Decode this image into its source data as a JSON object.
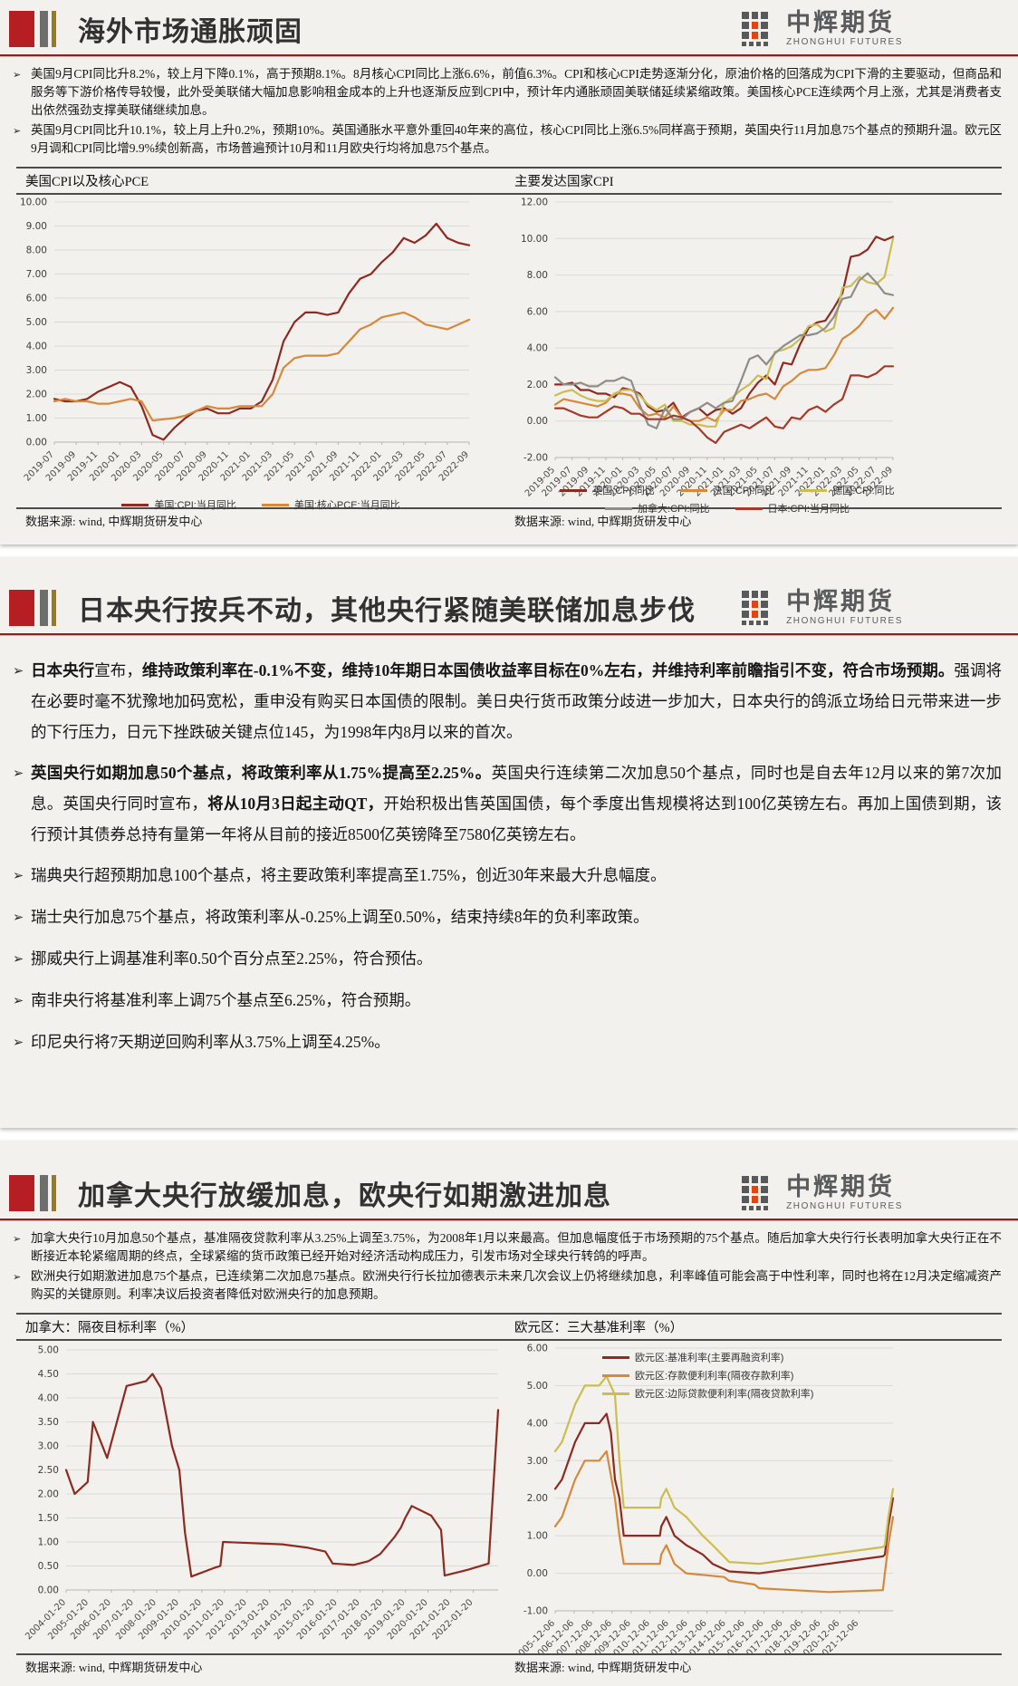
{
  "logo": {
    "cn": "中辉期货",
    "en": "ZHONGHUI FUTURES"
  },
  "bullet_glyph": "➢",
  "colors": {
    "accent_red": "#b51f24",
    "rule_red": "#8f2020",
    "header_gray": "#6e6e6e",
    "header_gold": "#9a7a1e",
    "card_bg": "#f2f1ee",
    "maroon": "#8e2a21",
    "orange": "#d6893a",
    "olive": "#cbbd52",
    "gray_line": "#8e8d88",
    "japan_red": "#a43a2a",
    "logo_gray": "#5a5b5d",
    "logo_red": "#e8430f"
  },
  "sections": [
    {
      "title": "海外市场通胀顽固",
      "bullets": [
        [
          {
            "t": "美国9月CPI同比升8.2%，较上月下降0.1%，高于预期8.1%。8月核心CPI同比上涨6.6%，前值6.3%。CPI和核心CPI走势逐渐分化，原油价格的回落成为CPI下滑的主要驱动，但商品和服务等下游价格传导较慢，此外受美联储大幅加息影响租金成本的上升也逐渐反应到CPI中，预计年内通胀顽固美联储延续紧缩政策。美国核心PCE连续两个月上涨，尤其是消费者支出依然强劲支撑美联储继续加息。",
            "b": false
          }
        ],
        [
          {
            "t": "英国9月CPI同比升10.1%，较上月上升0.2%，预期10%。英国通胀水平意外重回40年来的高位，核心CPI同比上涨6.5%同样高于预期，英国央行11月加息75个基点的预期升温。欧元区9月调和CPI同比增9.9%续创新高，市场普遍预计10月和11月欧央行均将加息75个基点。",
            "b": false
          }
        ]
      ],
      "chart_titles": [
        "美国CPI以及核心PCE",
        "主要发达国家CPI"
      ],
      "sources": [
        "数据来源: wind, 中辉期货研发中心",
        "数据来源: wind, 中辉期货研发中心"
      ]
    },
    {
      "title": "日本央行按兵不动，其他央行紧随美联储加息步伐",
      "bullets": [
        [
          {
            "t": "日本央行",
            "b": true
          },
          {
            "t": "宣布，",
            "b": false
          },
          {
            "t": "维持政策利率在-0.1%不变，维持10年期日本国债收益率目标在0%左右，并维持利率前瞻指引不变，符合市场预期。",
            "b": true
          },
          {
            "t": "强调将在必要时毫不犹豫地加码宽松，重申没有购买日本国债的限制。美日央行货币政策分歧进一步加大，日本央行的鸽派立场给日元带来进一步的下行压力，日元下挫跌破关键点位145，为1998年内8月以来的首次。",
            "b": false
          }
        ],
        [
          {
            "t": "英国央行如期加息50个基点，将政策利率从1.75%提高至2.25%。",
            "b": true
          },
          {
            "t": "英国央行连续第二次加息50个基点，同时也是自去年12月以来的第7次加息。英国央行同时宣布，",
            "b": false
          },
          {
            "t": "将从10月3日起主动QT，",
            "b": true
          },
          {
            "t": "开始积极出售英国国债，每个季度出售规模将达到100亿英镑左右。再加上国债到期，该行预计其债券总持有量第一年将从目前的接近8500亿英镑降至7580亿英镑左右。",
            "b": false
          }
        ],
        [
          {
            "t": "瑞典央行超预期加息100个基点，将主要政策利率提高至1.75%，创近30年来最大升息幅度。",
            "b": false
          }
        ],
        [
          {
            "t": "瑞士央行加息75个基点，将政策利率从-0.25%上调至0.50%，结束持续8年的负利率政策。",
            "b": false
          }
        ],
        [
          {
            "t": "挪威央行上调基准利率0.50个百分点至2.25%，符合预估。",
            "b": false
          }
        ],
        [
          {
            "t": "南非央行将基准利率上调75个基点至6.25%，符合预期。",
            "b": false
          }
        ],
        [
          {
            "t": "印尼央行将7天期逆回购利率从3.75%上调至4.25%。",
            "b": false
          }
        ]
      ]
    },
    {
      "title": "加拿大央行放缓加息，欧央行如期激进加息",
      "bullets": [
        [
          {
            "t": "加拿大央行10月加息50个基点，基准隔夜贷款利率从3.25%上调至3.75%，为2008年1月以来最高。但加息幅度低于市场预期的75个基点。随后加拿大央行行长表明加拿大央行正在不断接近本轮紧缩周期的终点，全球紧缩的货币政策已经开始对经济活动构成压力，引发市场对全球央行转鸽的呼声。",
            "b": false
          }
        ],
        [
          {
            "t": "欧洲央行如期激进加息75个基点，已连续第二次加息75基点。欧洲央行行长拉加德表示未来几次会议上仍将继续加息，利率峰值可能会高于中性利率，同时也将在12月决定缩减资产购买的关键原则。利率决议后投资者降低对欧洲央行的加息预期。",
            "b": false
          }
        ]
      ],
      "chart_titles": [
        "加拿大：隔夜目标利率（%）",
        "欧元区：三大基准利率（%）"
      ],
      "sources": [
        "数据来源: wind, 中辉期货研发中心",
        "数据来源: wind, 中辉期货研发中心"
      ]
    }
  ],
  "chart_data": [
    {
      "type": "line",
      "title": "美国CPI以及核心PCE",
      "ylim": [
        0,
        10
      ],
      "ytick": 1,
      "label_extend": 0,
      "grid": true,
      "legend_position": "below",
      "x_labels": [
        "2019-07",
        "2019-09",
        "2019-11",
        "2020-01",
        "2020-03",
        "2020-05",
        "2020-07",
        "2020-09",
        "2020-11",
        "2021-01",
        "2021-03",
        "2021-05",
        "2021-07",
        "2021-09",
        "2021-11",
        "2022-01",
        "2022-03",
        "2022-05",
        "2022-07",
        "2022-09"
      ],
      "legend_rows": [
        [
          0,
          1
        ]
      ],
      "series": [
        {
          "name": "美国:CPI:当月同比",
          "color": "#8e2a21",
          "y": [
            1.8,
            1.7,
            1.7,
            1.8,
            2.1,
            2.3,
            2.5,
            2.3,
            1.5,
            0.3,
            0.1,
            0.6,
            1.0,
            1.3,
            1.4,
            1.2,
            1.2,
            1.4,
            1.4,
            1.7,
            2.6,
            4.2,
            5.0,
            5.4,
            5.4,
            5.3,
            5.4,
            6.2,
            6.8,
            7.0,
            7.5,
            7.9,
            8.5,
            8.3,
            8.6,
            9.1,
            8.5,
            8.3,
            8.2
          ]
        },
        {
          "name": "美国:核心PCE:当月同比",
          "color": "#d6893a",
          "y": [
            1.7,
            1.8,
            1.7,
            1.7,
            1.6,
            1.6,
            1.7,
            1.8,
            1.7,
            0.9,
            0.95,
            1.0,
            1.1,
            1.3,
            1.5,
            1.4,
            1.4,
            1.5,
            1.5,
            1.5,
            2.0,
            3.1,
            3.5,
            3.6,
            3.6,
            3.6,
            3.7,
            4.2,
            4.7,
            4.9,
            5.2,
            5.3,
            5.4,
            5.2,
            4.9,
            4.8,
            4.7,
            4.9,
            5.1
          ]
        }
      ]
    },
    {
      "type": "line",
      "title": "主要发达国家CPI",
      "ylim": [
        -2,
        12
      ],
      "ytick": 2,
      "label_extend": 0,
      "grid": true,
      "legend_position": "below",
      "x_labels": [
        "2019-05",
        "2019-07",
        "2019-09",
        "2019-11",
        "2020-01",
        "2020-03",
        "2020-05",
        "2020-07",
        "2020-09",
        "2020-11",
        "2021-01",
        "2021-03",
        "2021-05",
        "2021-07",
        "2021-09",
        "2021-11",
        "2022-01",
        "2022-03",
        "2022-05",
        "2022-07",
        "2022-09"
      ],
      "legend_rows": [
        [
          0,
          1,
          2
        ],
        [
          3,
          4
        ]
      ],
      "series": [
        {
          "name": "英国:CPI:同比",
          "color": "#8e2a21",
          "y": [
            2.0,
            2.0,
            2.1,
            1.7,
            1.7,
            1.5,
            1.5,
            1.3,
            1.8,
            1.7,
            1.5,
            0.8,
            0.5,
            0.6,
            1.0,
            0.2,
            0.5,
            0.7,
            0.3,
            0.6,
            0.7,
            0.4,
            0.7,
            1.5,
            2.1,
            2.5,
            2.0,
            3.2,
            3.1,
            4.2,
            5.1,
            5.4,
            5.5,
            6.2,
            7.0,
            9.0,
            9.1,
            9.4,
            10.1,
            9.9,
            10.1
          ]
        },
        {
          "name": "法国:CPI:同比",
          "color": "#d6893a",
          "y": [
            0.9,
            1.2,
            1.1,
            1.0,
            0.9,
            0.8,
            1.0,
            1.5,
            1.5,
            1.4,
            0.7,
            0.3,
            0.4,
            0.2,
            0.8,
            0.2,
            0.0,
            0.0,
            0.2,
            0.0,
            0.6,
            0.6,
            1.1,
            1.2,
            1.4,
            1.5,
            1.2,
            1.9,
            2.2,
            2.6,
            2.8,
            2.8,
            2.9,
            3.6,
            4.5,
            4.8,
            5.2,
            5.8,
            6.1,
            5.6,
            6.2
          ]
        },
        {
          "name": "德国:CPI:同比",
          "color": "#cbbd52",
          "y": [
            1.4,
            1.6,
            1.7,
            1.4,
            1.2,
            1.1,
            1.1,
            1.5,
            1.7,
            1.7,
            1.4,
            0.9,
            0.6,
            0.9,
            0.0,
            0.0,
            -0.2,
            -0.2,
            -0.3,
            -0.3,
            1.0,
            1.3,
            1.7,
            2.0,
            2.5,
            2.3,
            3.8,
            3.9,
            4.1,
            4.5,
            5.2,
            5.3,
            4.9,
            5.1,
            7.3,
            7.4,
            7.9,
            7.6,
            7.5,
            7.9,
            10.0
          ]
        },
        {
          "name": "加拿大:CPI:同比",
          "color": "#8e8d88",
          "y": [
            2.4,
            2.0,
            2.0,
            2.1,
            1.9,
            1.9,
            2.2,
            2.2,
            2.4,
            2.2,
            0.9,
            -0.2,
            -0.4,
            0.7,
            0.1,
            0.1,
            0.5,
            0.7,
            1.0,
            0.7,
            1.0,
            1.1,
            2.2,
            3.4,
            3.6,
            3.1,
            3.7,
            4.1,
            4.4,
            4.7,
            4.7,
            4.8,
            5.1,
            5.7,
            6.7,
            6.8,
            7.7,
            8.1,
            7.6,
            7.0,
            6.9
          ]
        },
        {
          "name": "日本:CPI:当月同比",
          "color": "#a43a2a",
          "y": [
            0.7,
            0.7,
            0.5,
            0.3,
            0.2,
            0.2,
            0.5,
            0.8,
            0.7,
            0.4,
            0.4,
            0.1,
            0.1,
            0.1,
            0.3,
            0.2,
            0.0,
            -0.4,
            -0.9,
            -1.2,
            -0.6,
            -0.4,
            -0.2,
            -0.4,
            -0.1,
            0.2,
            -0.3,
            -0.4,
            0.2,
            0.1,
            0.6,
            0.8,
            0.5,
            0.9,
            1.2,
            2.5,
            2.5,
            2.4,
            2.6,
            3.0,
            3.0
          ]
        }
      ]
    },
    {
      "type": "line",
      "title": "加拿大：隔夜目标利率（%）",
      "ylim": [
        0,
        5
      ],
      "ytick": 0.5,
      "label_extend": 1.1,
      "grid": true,
      "legend_position": "none",
      "x_labels": [
        "2004-01-20",
        "2005-01-20",
        "2006-01-20",
        "2007-01-20",
        "2008-01-20",
        "2009-01-20",
        "2010-01-20",
        "2011-01-20",
        "2012-01-20",
        "2013-01-20",
        "2014-01-20",
        "2015-01-20",
        "2016-01-20",
        "2017-01-20",
        "2018-01-20",
        "2019-01-20",
        "2020-01-20",
        "2021-01-20",
        "2022-01-20"
      ],
      "legend_rows": [],
      "series": [
        {
          "name": "加拿大:隔夜目标利率",
          "color": "#8e2a21",
          "points": [
            [
              0,
              2.5
            ],
            [
              0.02,
              2.0
            ],
            [
              0.05,
              2.25
            ],
            [
              0.062,
              3.5
            ],
            [
              0.095,
              2.75
            ],
            [
              0.14,
              4.25
            ],
            [
              0.185,
              4.35
            ],
            [
              0.2,
              4.5
            ],
            [
              0.22,
              4.2
            ],
            [
              0.245,
              3.0
            ],
            [
              0.262,
              2.5
            ],
            [
              0.275,
              1.2
            ],
            [
              0.29,
              0.28
            ],
            [
              0.34,
              0.45
            ],
            [
              0.357,
              0.5
            ],
            [
              0.363,
              1.0
            ],
            [
              0.5,
              0.95
            ],
            [
              0.56,
              0.88
            ],
            [
              0.6,
              0.8
            ],
            [
              0.617,
              0.55
            ],
            [
              0.665,
              0.52
            ],
            [
              0.7,
              0.6
            ],
            [
              0.727,
              0.75
            ],
            [
              0.76,
              1.1
            ],
            [
              0.775,
              1.3
            ],
            [
              0.785,
              1.5
            ],
            [
              0.8,
              1.75
            ],
            [
              0.845,
              1.55
            ],
            [
              0.868,
              1.25
            ],
            [
              0.876,
              0.3
            ],
            [
              0.93,
              0.42
            ],
            [
              0.978,
              0.55
            ],
            [
              1.0,
              3.75
            ]
          ]
        }
      ]
    },
    {
      "type": "line",
      "title": "欧元区：三大基准利率（%）",
      "ylim": [
        -1,
        6
      ],
      "ytick": 1,
      "label_extend": 1.8,
      "grid": true,
      "legend_position": "inside-top-left",
      "x_labels": [
        "2005-12-06",
        "2006-12-06",
        "2007-12-06",
        "2008-12-06",
        "2009-12-06",
        "2010-12-06",
        "2011-12-06",
        "2012-12-06",
        "2013-12-06",
        "2014-12-06",
        "2015-12-06",
        "2016-12-06",
        "2017-12-06",
        "2018-12-06",
        "2019-12-06",
        "2020-12-06",
        "2021-12-06"
      ],
      "legend_rows": [
        [
          0
        ],
        [
          1
        ],
        [
          2
        ]
      ],
      "series": [
        {
          "name": "欧元区:基准利率(主要再融资利率)",
          "color": "#8e2a21",
          "points": [
            [
              0,
              2.25
            ],
            [
              0.02,
              2.5
            ],
            [
              0.059,
              3.5
            ],
            [
              0.088,
              4.0
            ],
            [
              0.13,
              4.0
            ],
            [
              0.152,
              4.25
            ],
            [
              0.165,
              3.75
            ],
            [
              0.177,
              2.5
            ],
            [
              0.19,
              2.0
            ],
            [
              0.203,
              1.0
            ],
            [
              0.31,
              1.0
            ],
            [
              0.314,
              1.25
            ],
            [
              0.329,
              1.5
            ],
            [
              0.353,
              1.0
            ],
            [
              0.388,
              0.75
            ],
            [
              0.437,
              0.5
            ],
            [
              0.466,
              0.25
            ],
            [
              0.515,
              0.05
            ],
            [
              0.604,
              0.0
            ],
            [
              0.97,
              0.45
            ],
            [
              0.976,
              0.5
            ],
            [
              0.986,
              1.25
            ],
            [
              1.0,
              2.0
            ]
          ]
        },
        {
          "name": "欧元区:存款便利利率(隔夜存款利率)",
          "color": "#d6893a",
          "points": [
            [
              0,
              1.25
            ],
            [
              0.02,
              1.5
            ],
            [
              0.059,
              2.5
            ],
            [
              0.088,
              3.0
            ],
            [
              0.13,
              3.0
            ],
            [
              0.152,
              3.25
            ],
            [
              0.177,
              2.0
            ],
            [
              0.19,
              1.0
            ],
            [
              0.203,
              0.25
            ],
            [
              0.31,
              0.25
            ],
            [
              0.314,
              0.5
            ],
            [
              0.329,
              0.75
            ],
            [
              0.353,
              0.25
            ],
            [
              0.388,
              0.0
            ],
            [
              0.5,
              -0.1
            ],
            [
              0.515,
              -0.2
            ],
            [
              0.59,
              -0.3
            ],
            [
              0.604,
              -0.4
            ],
            [
              0.81,
              -0.5
            ],
            [
              0.97,
              -0.45
            ],
            [
              0.976,
              0.0
            ],
            [
              0.986,
              0.75
            ],
            [
              1.0,
              1.5
            ]
          ]
        },
        {
          "name": "欧元区:边际贷款便利利率(隔夜贷款利率)",
          "color": "#cbbd52",
          "points": [
            [
              0,
              3.25
            ],
            [
              0.02,
              3.5
            ],
            [
              0.059,
              4.5
            ],
            [
              0.088,
              5.0
            ],
            [
              0.13,
              5.0
            ],
            [
              0.152,
              5.25
            ],
            [
              0.177,
              4.75
            ],
            [
              0.19,
              3.0
            ],
            [
              0.203,
              1.75
            ],
            [
              0.31,
              1.75
            ],
            [
              0.314,
              2.0
            ],
            [
              0.329,
              2.25
            ],
            [
              0.353,
              1.75
            ],
            [
              0.388,
              1.5
            ],
            [
              0.437,
              1.0
            ],
            [
              0.466,
              0.75
            ],
            [
              0.515,
              0.3
            ],
            [
              0.604,
              0.25
            ],
            [
              0.97,
              0.7
            ],
            [
              0.976,
              0.75
            ],
            [
              0.986,
              1.5
            ],
            [
              1.0,
              2.25
            ]
          ]
        }
      ]
    }
  ]
}
